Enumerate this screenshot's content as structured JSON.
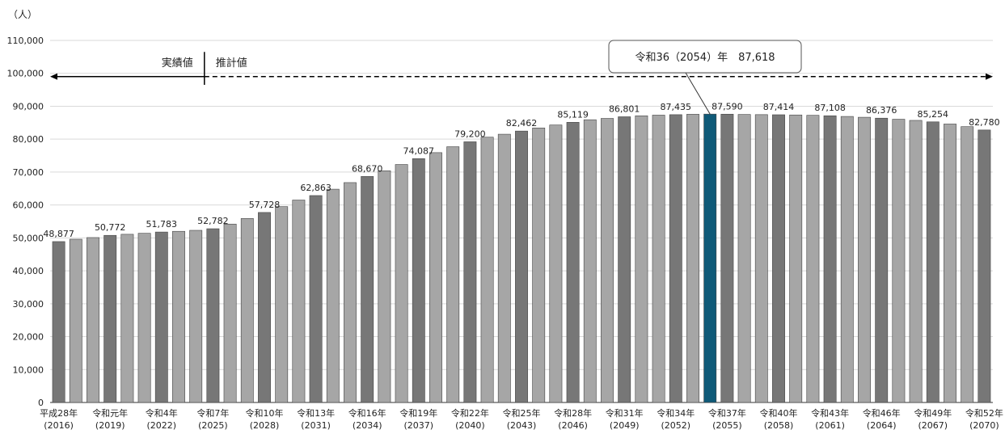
{
  "chart_data": {
    "type": "bar",
    "unit_label": "（人）",
    "ylim": [
      0,
      110000
    ],
    "yticks": [
      0,
      10000,
      20000,
      30000,
      40000,
      50000,
      60000,
      70000,
      80000,
      90000,
      100000,
      110000
    ],
    "ytick_labels": [
      "0",
      "10,000",
      "20,000",
      "30,000",
      "40,000",
      "50,000",
      "60,000",
      "70,000",
      "80,000",
      "90,000",
      "100,000",
      "110,000"
    ],
    "grid": true,
    "years": [
      2016,
      2017,
      2018,
      2019,
      2020,
      2021,
      2022,
      2023,
      2024,
      2025,
      2026,
      2027,
      2028,
      2029,
      2030,
      2031,
      2032,
      2033,
      2034,
      2035,
      2036,
      2037,
      2038,
      2039,
      2040,
      2041,
      2042,
      2043,
      2044,
      2045,
      2046,
      2047,
      2048,
      2049,
      2050,
      2051,
      2052,
      2053,
      2054,
      2055,
      2056,
      2057,
      2058,
      2059,
      2060,
      2061,
      2062,
      2063,
      2064,
      2065,
      2066,
      2067,
      2068,
      2069,
      2070
    ],
    "values": [
      48877,
      49600,
      50100,
      50772,
      51100,
      51400,
      51783,
      52000,
      52300,
      52782,
      54200,
      55900,
      57728,
      59500,
      61500,
      62863,
      64800,
      66800,
      68670,
      70400,
      72300,
      74087,
      75900,
      77700,
      79200,
      80600,
      81500,
      82462,
      83400,
      84300,
      85119,
      85900,
      86300,
      86801,
      87100,
      87300,
      87435,
      87560,
      87618,
      87590,
      87500,
      87450,
      87414,
      87350,
      87250,
      87108,
      86900,
      86650,
      86376,
      86050,
      85700,
      85254,
      84600,
      83800,
      82780
    ],
    "highlight_year": 2054,
    "data_labels": [
      {
        "year": 2016,
        "text": "48,877"
      },
      {
        "year": 2019,
        "text": "50,772"
      },
      {
        "year": 2022,
        "text": "51,783"
      },
      {
        "year": 2025,
        "text": "52,782"
      },
      {
        "year": 2028,
        "text": "57,728"
      },
      {
        "year": 2031,
        "text": "62,863"
      },
      {
        "year": 2034,
        "text": "68,670"
      },
      {
        "year": 2037,
        "text": "74,087"
      },
      {
        "year": 2040,
        "text": "79,200"
      },
      {
        "year": 2043,
        "text": "82,462"
      },
      {
        "year": 2046,
        "text": "85,119"
      },
      {
        "year": 2049,
        "text": "86,801"
      },
      {
        "year": 2052,
        "text": "87,435"
      },
      {
        "year": 2055,
        "text": "87,590"
      },
      {
        "year": 2058,
        "text": "87,414"
      },
      {
        "year": 2061,
        "text": "87,108"
      },
      {
        "year": 2064,
        "text": "86,376"
      },
      {
        "year": 2067,
        "text": "85,254"
      },
      {
        "year": 2070,
        "text": "82,780"
      }
    ],
    "x_labels": [
      {
        "year": 2016,
        "line1": "平成28年",
        "line2": "(2016)"
      },
      {
        "year": 2019,
        "line1": "令和元年",
        "line2": "(2019)"
      },
      {
        "year": 2022,
        "line1": "令和4年",
        "line2": "(2022)"
      },
      {
        "year": 2025,
        "line1": "令和7年",
        "line2": "(2025)"
      },
      {
        "year": 2028,
        "line1": "令和10年",
        "line2": "(2028)"
      },
      {
        "year": 2031,
        "line1": "令和13年",
        "line2": "(2031)"
      },
      {
        "year": 2034,
        "line1": "令和16年",
        "line2": "(2034)"
      },
      {
        "year": 2037,
        "line1": "令和19年",
        "line2": "(2037)"
      },
      {
        "year": 2040,
        "line1": "令和22年",
        "line2": "(2040)"
      },
      {
        "year": 2043,
        "line1": "令和25年",
        "line2": "(2043)"
      },
      {
        "year": 2046,
        "line1": "令和28年",
        "line2": "(2046)"
      },
      {
        "year": 2049,
        "line1": "令和31年",
        "line2": "(2049)"
      },
      {
        "year": 2052,
        "line1": "令和34年",
        "line2": "(2052)"
      },
      {
        "year": 2055,
        "line1": "令和37年",
        "line2": "(2055)"
      },
      {
        "year": 2058,
        "line1": "令和40年",
        "line2": "(2058)"
      },
      {
        "year": 2061,
        "line1": "令和43年",
        "line2": "(2061)"
      },
      {
        "year": 2064,
        "line1": "令和46年",
        "line2": "(2064)"
      },
      {
        "year": 2067,
        "line1": "令和49年",
        "line2": "(2067)"
      },
      {
        "year": 2070,
        "line1": "令和52年",
        "line2": "(2070)"
      }
    ],
    "actual_label": "実績値",
    "estimate_label": "推計値",
    "split_after_year": 2024,
    "callout": {
      "year": 2054,
      "text": "令和36（2054）年　87,618"
    },
    "colors": {
      "labeled_bar": "#777777",
      "other_bar": "#a6a6a6",
      "highlight_bar": "#0f5a78",
      "grid": "#d9d9d9",
      "axis": "#333333"
    }
  }
}
